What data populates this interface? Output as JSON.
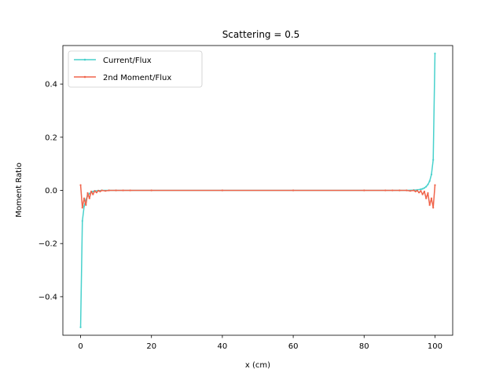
{
  "chart_data": {
    "type": "line",
    "title": "Scattering = 0.5",
    "xlabel": "x (cm)",
    "ylabel": "Moment Ratio",
    "xlim": [
      -5,
      105
    ],
    "ylim": [
      -0.545,
      0.545
    ],
    "xticks": [
      0,
      20,
      40,
      60,
      80,
      100
    ],
    "yticks": [
      -0.4,
      -0.2,
      0.0,
      0.2,
      0.4
    ],
    "grid": false,
    "legend_position": "upper-left",
    "series": [
      {
        "name": "Current/Flux",
        "color": "#48d1cc",
        "points": [
          [
            0,
            -0.515
          ],
          [
            0.5,
            -0.115
          ],
          [
            1,
            -0.06
          ],
          [
            1.5,
            -0.035
          ],
          [
            2,
            -0.02
          ],
          [
            2.5,
            -0.012
          ],
          [
            3,
            -0.007
          ],
          [
            3.5,
            -0.004
          ],
          [
            4,
            -0.002
          ],
          [
            5,
            -0.001
          ],
          [
            6,
            0
          ],
          [
            8,
            0
          ],
          [
            10,
            0
          ],
          [
            20,
            0
          ],
          [
            40,
            0
          ],
          [
            60,
            0
          ],
          [
            80,
            0
          ],
          [
            90,
            0
          ],
          [
            92,
            0
          ],
          [
            94,
            0.001
          ],
          [
            95,
            0.002
          ],
          [
            96,
            0.004
          ],
          [
            96.5,
            0.006
          ],
          [
            97,
            0.009
          ],
          [
            97.5,
            0.014
          ],
          [
            98,
            0.022
          ],
          [
            98.5,
            0.035
          ],
          [
            99,
            0.06
          ],
          [
            99.5,
            0.115
          ],
          [
            100,
            0.515
          ]
        ]
      },
      {
        "name": "2nd Moment/Flux",
        "color": "#f0644b",
        "points": [
          [
            0,
            0.02
          ],
          [
            0.5,
            -0.065
          ],
          [
            1,
            -0.03
          ],
          [
            1.5,
            -0.055
          ],
          [
            2,
            -0.01
          ],
          [
            2.5,
            -0.03
          ],
          [
            3,
            -0.004
          ],
          [
            3.5,
            -0.015
          ],
          [
            4,
            -0.002
          ],
          [
            4.5,
            -0.008
          ],
          [
            5,
            -0.001
          ],
          [
            5.5,
            -0.004
          ],
          [
            6,
            0
          ],
          [
            7,
            -0.002
          ],
          [
            8,
            0
          ],
          [
            10,
            0
          ],
          [
            12,
            0
          ],
          [
            14,
            0
          ],
          [
            20,
            0
          ],
          [
            40,
            0
          ],
          [
            60,
            0
          ],
          [
            80,
            0
          ],
          [
            86,
            0
          ],
          [
            88,
            0
          ],
          [
            90,
            0
          ],
          [
            92,
            0
          ],
          [
            93,
            -0.002
          ],
          [
            94,
            0
          ],
          [
            94.5,
            -0.004
          ],
          [
            95,
            -0.001
          ],
          [
            95.5,
            -0.008
          ],
          [
            96,
            -0.002
          ],
          [
            96.5,
            -0.015
          ],
          [
            97,
            -0.004
          ],
          [
            97.5,
            -0.03
          ],
          [
            98,
            -0.01
          ],
          [
            98.5,
            -0.055
          ],
          [
            99,
            -0.03
          ],
          [
            99.5,
            -0.065
          ],
          [
            100,
            0.02
          ]
        ]
      }
    ]
  }
}
